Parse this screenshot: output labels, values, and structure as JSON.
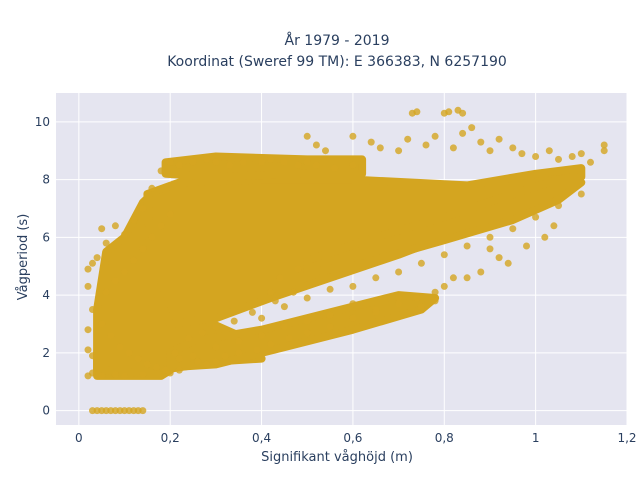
{
  "chart_data": {
    "type": "scatter",
    "title_line1": "År 1979 - 2019",
    "title_line2": "Koordinat (Sweref 99 TM): E 366383, N 6257190",
    "xlabel": "Signifikant våghöjd (m)",
    "ylabel": "Vågperiod (s)",
    "xlim": [
      -0.05,
      1.2
    ],
    "ylim": [
      -0.5,
      11
    ],
    "x_ticks": [
      0,
      0.2,
      0.4,
      0.6,
      0.8,
      1,
      1.2
    ],
    "x_tick_labels": [
      "0",
      "0,2",
      "0,4",
      "0,6",
      "0,8",
      "1",
      "1,2"
    ],
    "y_ticks": [
      0,
      2,
      4,
      6,
      8,
      10
    ],
    "y_tick_labels": [
      "0",
      "2",
      "4",
      "6",
      "8",
      "10"
    ],
    "grid": true,
    "background": "#e5e5f0",
    "marker_color": "#d4a520",
    "marker_opacity": 0.8,
    "points": [
      [
        0.03,
        0
      ],
      [
        0.04,
        0
      ],
      [
        0.05,
        0
      ],
      [
        0.06,
        0
      ],
      [
        0.07,
        0
      ],
      [
        0.08,
        0
      ],
      [
        0.09,
        0
      ],
      [
        0.1,
        0
      ],
      [
        0.11,
        0
      ],
      [
        0.12,
        0
      ],
      [
        0.13,
        0
      ],
      [
        0.14,
        0
      ],
      [
        0.02,
        1.2
      ],
      [
        0.03,
        1.3
      ],
      [
        0.05,
        1.2
      ],
      [
        0.08,
        1.25
      ],
      [
        0.1,
        1.2
      ],
      [
        0.14,
        1.25
      ],
      [
        0.2,
        1.3
      ],
      [
        0.22,
        1.4
      ],
      [
        0.02,
        2.1
      ],
      [
        0.03,
        1.9
      ],
      [
        0.02,
        2.8
      ],
      [
        0.03,
        3.5
      ],
      [
        0.02,
        4.9
      ],
      [
        0.03,
        5.1
      ],
      [
        0.04,
        5.3
      ],
      [
        0.02,
        4.3
      ],
      [
        0.05,
        6.3
      ],
      [
        0.06,
        5.8
      ],
      [
        0.08,
        6.4
      ],
      [
        0.1,
        6.1
      ],
      [
        0.12,
        6.6
      ],
      [
        0.14,
        7.0
      ],
      [
        0.16,
        7.7
      ],
      [
        0.18,
        8.3
      ],
      [
        0.2,
        8.6
      ],
      [
        0.22,
        8.5
      ],
      [
        0.25,
        8.6
      ],
      [
        0.28,
        8.7
      ],
      [
        0.3,
        8.6
      ],
      [
        0.33,
        8.5
      ],
      [
        0.36,
        8.6
      ],
      [
        0.4,
        8.6
      ],
      [
        0.42,
        8.7
      ],
      [
        0.45,
        8.6
      ],
      [
        0.48,
        8.5
      ],
      [
        0.5,
        8.6
      ],
      [
        0.52,
        8.5
      ],
      [
        0.56,
        8.4
      ],
      [
        0.6,
        8.5
      ],
      [
        0.5,
        9.5
      ],
      [
        0.52,
        9.2
      ],
      [
        0.54,
        9.0
      ],
      [
        0.6,
        9.5
      ],
      [
        0.64,
        9.3
      ],
      [
        0.66,
        9.1
      ],
      [
        0.7,
        9.0
      ],
      [
        0.72,
        9.4
      ],
      [
        0.73,
        10.3
      ],
      [
        0.74,
        10.35
      ],
      [
        0.8,
        10.3
      ],
      [
        0.81,
        10.35
      ],
      [
        0.83,
        10.4
      ],
      [
        0.84,
        10.3
      ],
      [
        0.86,
        9.8
      ],
      [
        0.84,
        9.6
      ],
      [
        0.76,
        9.2
      ],
      [
        0.78,
        9.5
      ],
      [
        0.82,
        9.1
      ],
      [
        0.88,
        9.3
      ],
      [
        0.9,
        9.0
      ],
      [
        0.92,
        9.4
      ],
      [
        0.95,
        9.1
      ],
      [
        0.97,
        8.9
      ],
      [
        1.0,
        8.8
      ],
      [
        1.03,
        9.0
      ],
      [
        1.05,
        8.7
      ],
      [
        1.08,
        8.8
      ],
      [
        1.1,
        8.9
      ],
      [
        1.12,
        8.6
      ],
      [
        1.15,
        9.2
      ],
      [
        1.15,
        9.0
      ],
      [
        0.4,
        3.2
      ],
      [
        0.45,
        3.6
      ],
      [
        0.5,
        3.9
      ],
      [
        0.55,
        4.2
      ],
      [
        0.6,
        4.3
      ],
      [
        0.65,
        4.6
      ],
      [
        0.7,
        4.8
      ],
      [
        0.75,
        5.1
      ],
      [
        0.8,
        5.4
      ],
      [
        0.85,
        5.7
      ],
      [
        0.9,
        6.0
      ],
      [
        0.95,
        6.3
      ],
      [
        1.0,
        6.7
      ],
      [
        1.05,
        7.1
      ],
      [
        1.1,
        7.5
      ],
      [
        0.9,
        5.6
      ],
      [
        0.85,
        4.6
      ],
      [
        0.8,
        4.3
      ],
      [
        0.78,
        3.8
      ],
      [
        0.75,
        3.6
      ],
      [
        0.7,
        3.9
      ],
      [
        0.65,
        3.4
      ],
      [
        0.6,
        3.7
      ],
      [
        0.55,
        3.3
      ],
      [
        0.5,
        3.1
      ],
      [
        0.45,
        2.9
      ],
      [
        0.4,
        2.6
      ],
      [
        0.35,
        2.4
      ],
      [
        0.3,
        2.2
      ],
      [
        0.25,
        1.9
      ],
      [
        0.22,
        1.8
      ],
      [
        0.42,
        4.1
      ],
      [
        0.44,
        4.6
      ],
      [
        0.48,
        4.9
      ],
      [
        0.26,
        1.7
      ],
      [
        0.28,
        1.6
      ],
      [
        0.3,
        1.7
      ],
      [
        0.32,
        1.9
      ],
      [
        0.35,
        2.0
      ],
      [
        0.39,
        2.1
      ],
      [
        0.42,
        2.3
      ],
      [
        0.46,
        2.5
      ],
      [
        0.5,
        2.7
      ],
      [
        0.55,
        2.9
      ],
      [
        0.6,
        3.2
      ],
      [
        0.65,
        3.5
      ],
      [
        0.7,
        3.7
      ],
      [
        0.74,
        3.9
      ],
      [
        0.78,
        4.1
      ],
      [
        0.98,
        5.7
      ],
      [
        1.02,
        6.0
      ],
      [
        1.04,
        6.4
      ],
      [
        0.94,
        5.1
      ],
      [
        0.82,
        4.6
      ],
      [
        0.88,
        4.8
      ],
      [
        0.92,
        5.3
      ],
      [
        0.21,
        2.0
      ],
      [
        0.24,
        2.5
      ],
      [
        0.27,
        2.7
      ],
      [
        0.3,
        2.9
      ],
      [
        0.34,
        3.1
      ],
      [
        0.38,
        3.4
      ],
      [
        0.43,
        3.8
      ],
      [
        0.47,
        4.1
      ],
      [
        0.05,
        3.0
      ],
      [
        0.07,
        2.6
      ],
      [
        0.09,
        2.2
      ],
      [
        0.11,
        2.0
      ],
      [
        0.13,
        1.8
      ],
      [
        0.15,
        1.6
      ],
      [
        0.17,
        1.5
      ],
      [
        0.19,
        1.4
      ],
      [
        0.06,
        4.1
      ],
      [
        0.08,
        4.5
      ],
      [
        0.1,
        4.8
      ],
      [
        0.12,
        5.2
      ],
      [
        0.14,
        5.6
      ],
      [
        0.16,
        6.0
      ],
      [
        0.18,
        6.4
      ],
      [
        0.2,
        6.8
      ]
    ],
    "regions": [
      {
        "polygon": [
          [
            0.04,
            1.2
          ],
          [
            0.18,
            1.2
          ],
          [
            0.2,
            1.4
          ],
          [
            0.1,
            1.8
          ],
          [
            0.04,
            2.0
          ]
        ]
      },
      {
        "polygon": [
          [
            0.04,
            1.4
          ],
          [
            0.14,
            1.3
          ],
          [
            0.22,
            1.5
          ],
          [
            0.3,
            1.7
          ],
          [
            0.4,
            1.8
          ],
          [
            0.35,
            2.6
          ],
          [
            0.25,
            3.3
          ],
          [
            0.18,
            5.5
          ],
          [
            0.16,
            7.5
          ],
          [
            0.14,
            7.2
          ],
          [
            0.1,
            6.0
          ],
          [
            0.06,
            5.5
          ],
          [
            0.04,
            3.5
          ]
        ]
      },
      {
        "polygon": [
          [
            0.15,
            7.5
          ],
          [
            0.22,
            7.9
          ],
          [
            0.4,
            8.0
          ],
          [
            0.6,
            8.0
          ],
          [
            0.85,
            7.8
          ],
          [
            1.0,
            8.2
          ],
          [
            1.1,
            8.4
          ],
          [
            1.1,
            8.1
          ],
          [
            0.98,
            7.2
          ],
          [
            0.85,
            6.3
          ],
          [
            0.7,
            5.4
          ],
          [
            0.55,
            4.6
          ],
          [
            0.42,
            3.9
          ],
          [
            0.3,
            3.2
          ],
          [
            0.2,
            3.0
          ],
          [
            0.16,
            4.5
          ]
        ]
      },
      {
        "polygon": [
          [
            0.2,
            1.5
          ],
          [
            0.3,
            1.6
          ],
          [
            0.45,
            2.2
          ],
          [
            0.6,
            2.8
          ],
          [
            0.75,
            3.5
          ],
          [
            0.78,
            3.9
          ],
          [
            0.7,
            4.0
          ],
          [
            0.55,
            3.4
          ],
          [
            0.4,
            2.8
          ],
          [
            0.25,
            2.4
          ],
          [
            0.2,
            2.0
          ]
        ]
      },
      {
        "polygon": [
          [
            0.19,
            8.2
          ],
          [
            0.3,
            8.1
          ],
          [
            0.5,
            8.2
          ],
          [
            0.62,
            8.2
          ],
          [
            0.62,
            8.7
          ],
          [
            0.5,
            8.7
          ],
          [
            0.3,
            8.8
          ],
          [
            0.19,
            8.6
          ]
        ]
      },
      {
        "polygon": [
          [
            0.6,
            5.0
          ],
          [
            0.8,
            5.9
          ],
          [
            0.95,
            6.6
          ],
          [
            1.05,
            7.3
          ],
          [
            1.1,
            7.9
          ],
          [
            1.05,
            8.0
          ],
          [
            0.95,
            7.5
          ],
          [
            0.8,
            6.7
          ],
          [
            0.65,
            6.0
          ],
          [
            0.5,
            5.2
          ],
          [
            0.5,
            4.8
          ]
        ]
      }
    ]
  }
}
